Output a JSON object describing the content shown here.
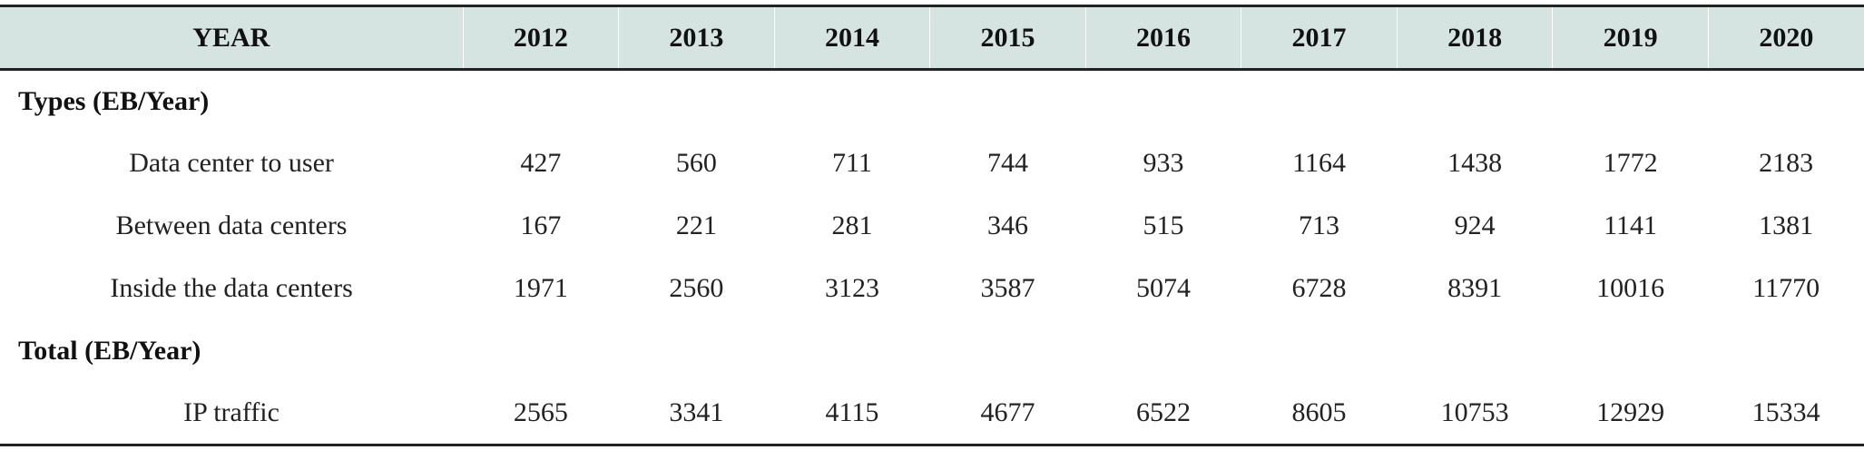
{
  "table": {
    "header": [
      "YEAR",
      "2012",
      "2013",
      "2014",
      "2015",
      "2016",
      "2017",
      "2018",
      "2019",
      "2020"
    ],
    "sections": [
      {
        "title": "Types (EB/Year)",
        "rows": [
          {
            "label": "Data center to user",
            "values": [
              "427",
              "560",
              "711",
              "744",
              "933",
              "1164",
              "1438",
              "1772",
              "2183"
            ]
          },
          {
            "label": "Between data centers",
            "values": [
              "167",
              "221",
              "281",
              "346",
              "515",
              "713",
              "924",
              "1141",
              "1381"
            ]
          },
          {
            "label": "Inside the data centers",
            "values": [
              "1971",
              "2560",
              "3123",
              "3587",
              "5074",
              "6728",
              "8391",
              "10016",
              "11770"
            ]
          }
        ]
      },
      {
        "title": "Total (EB/Year)",
        "rows": [
          {
            "label": "IP traffic",
            "values": [
              "2565",
              "3341",
              "4115",
              "4677",
              "6522",
              "8605",
              "10753",
              "12929",
              "15334"
            ]
          }
        ]
      }
    ]
  }
}
